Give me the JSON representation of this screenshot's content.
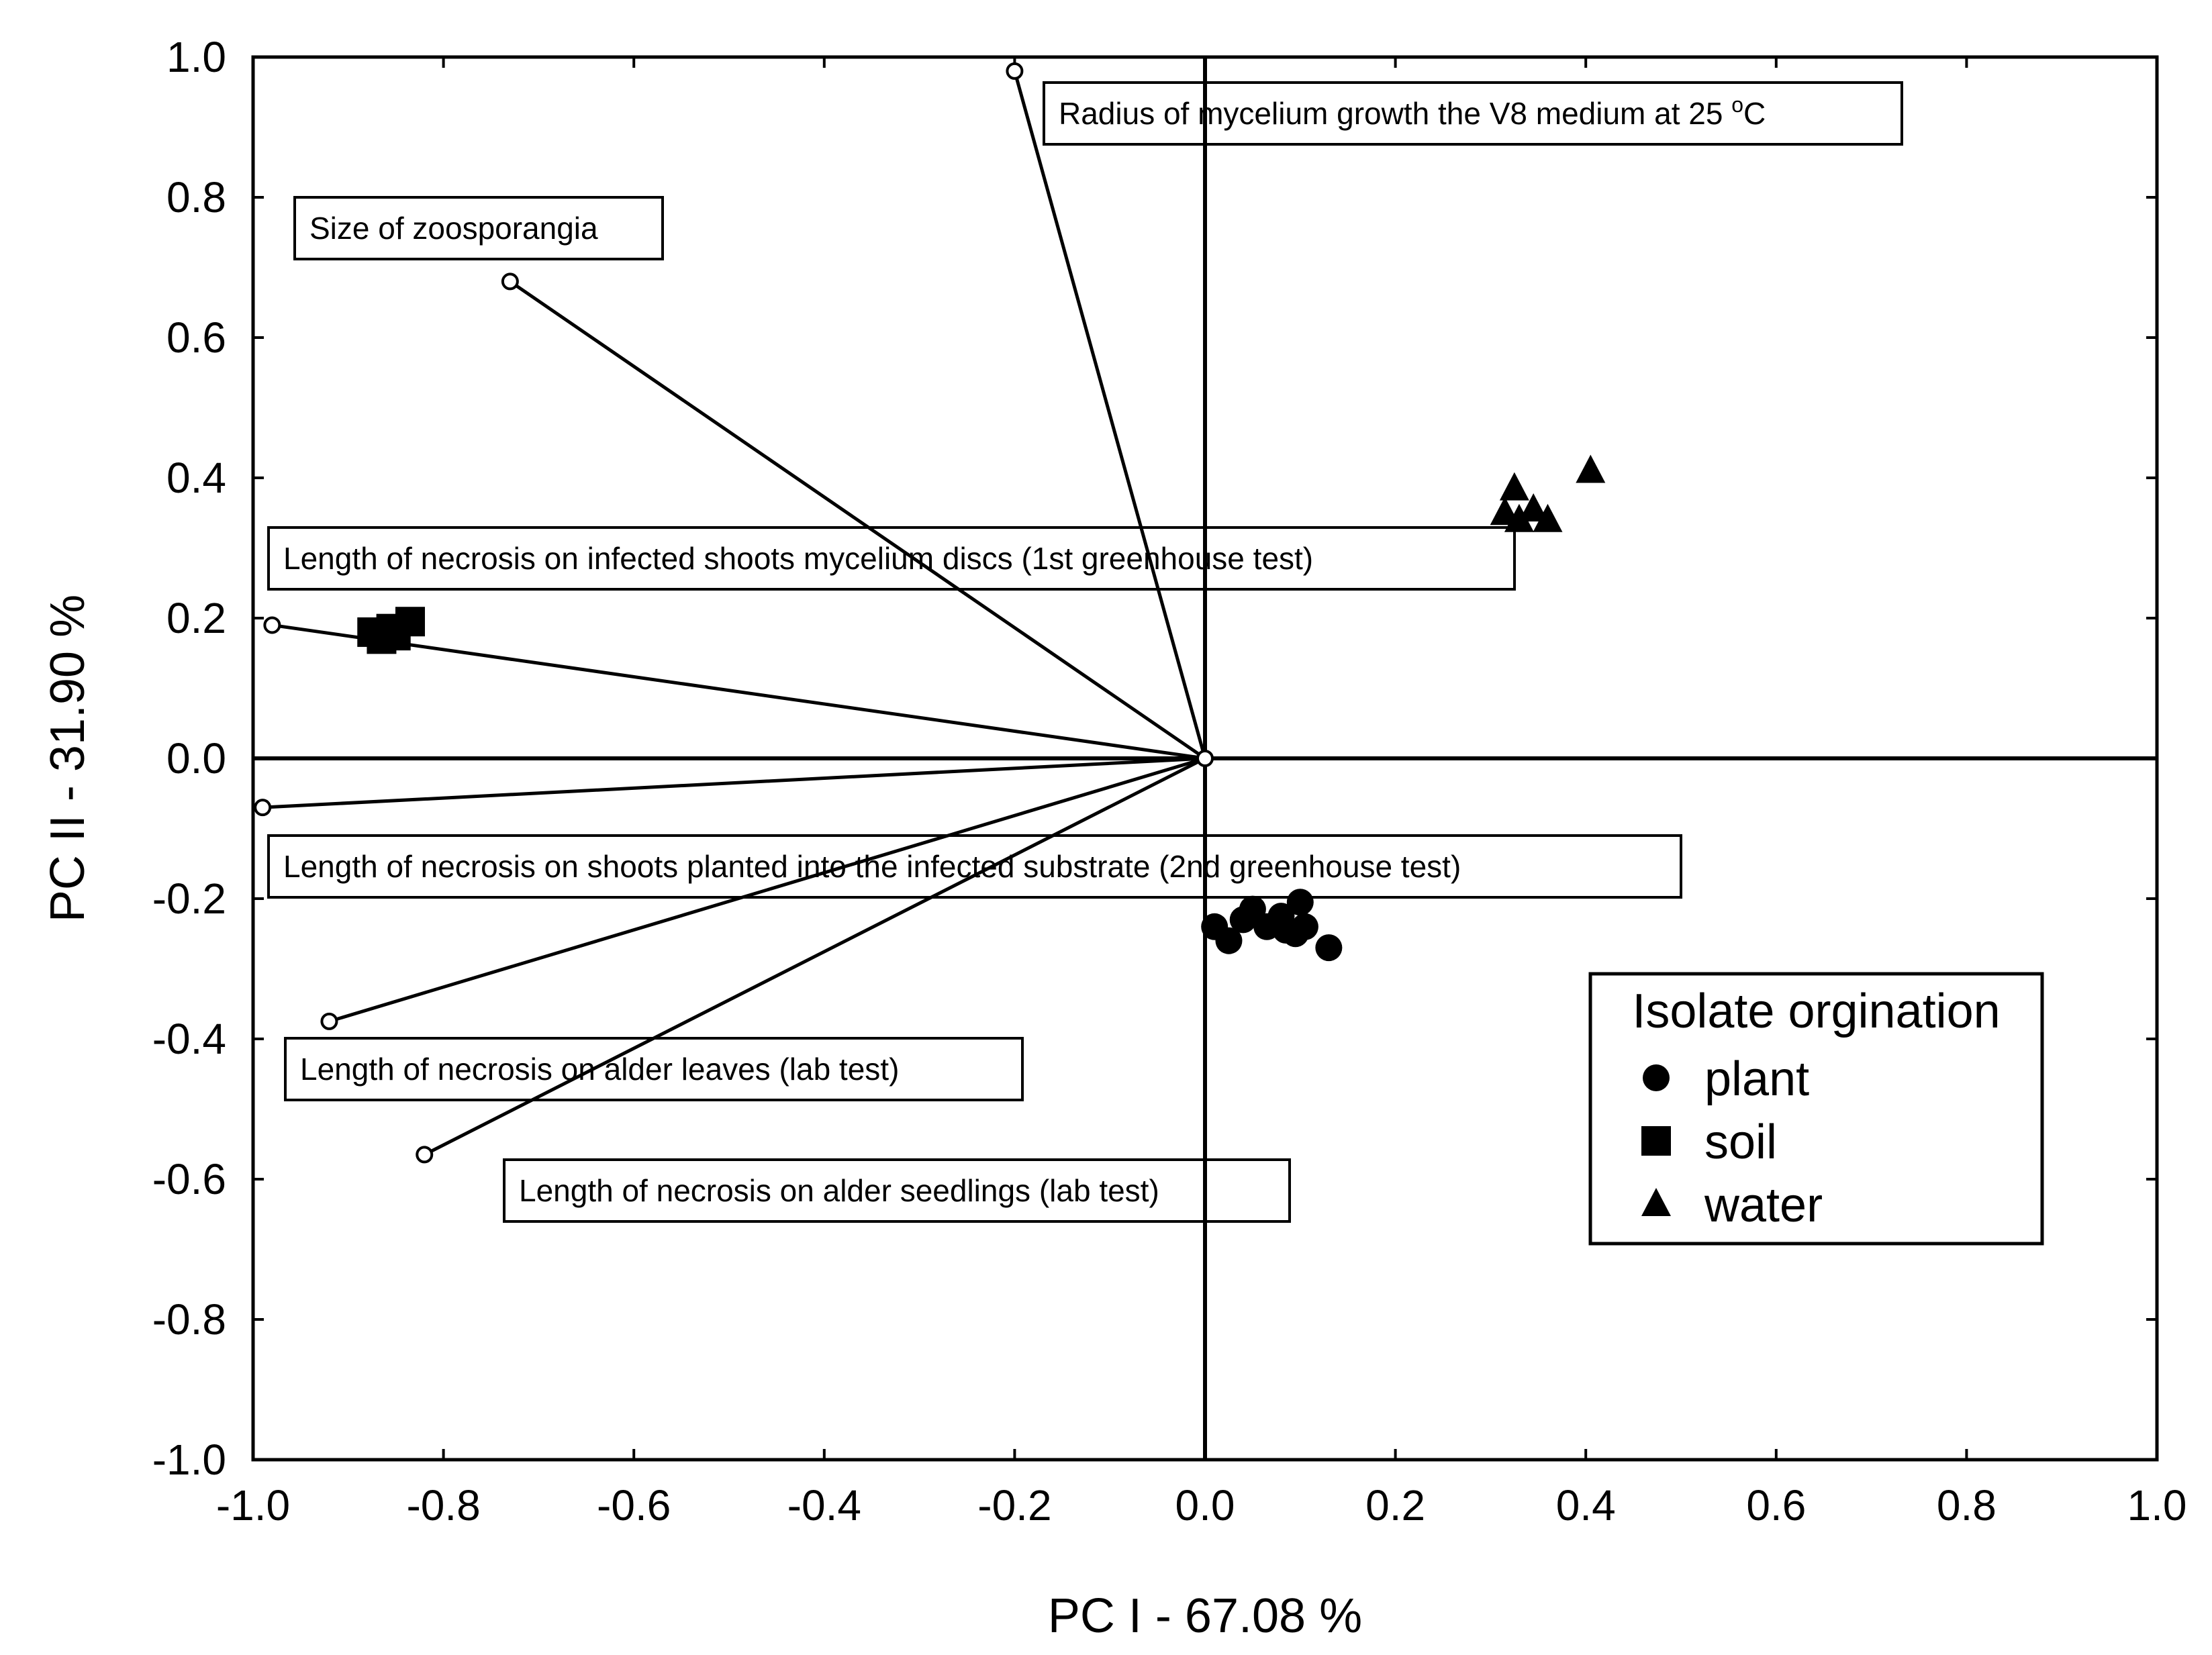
{
  "chart_data": {
    "type": "scatter",
    "title": "",
    "xlabel": "PC I - 67.08 %",
    "ylabel": "PC II - 31.90 %",
    "xlim": [
      -1.0,
      1.0
    ],
    "ylim": [
      -1.0,
      1.0
    ],
    "xticks": [
      "-1.0",
      "-0.8",
      "-0.6",
      "-0.4",
      "-0.2",
      "0.0",
      "0.2",
      "0.4",
      "0.6",
      "0.8",
      "1.0"
    ],
    "yticks": [
      "1.0",
      "0.8",
      "0.6",
      "0.4",
      "0.2",
      "0.0",
      "-0.2",
      "-0.4",
      "-0.6",
      "-0.8",
      "-1.0"
    ],
    "grid": false,
    "legend_title": "Isolate orgination",
    "legend_position": "lower-right",
    "vectors": [
      {
        "label": "Radius of mycelium growth the V8 medium at 25",
        "sup": "o",
        "unit": "C",
        "x": -0.2,
        "y": 0.98
      },
      {
        "label": "Size of zoosporangia",
        "x": -0.73,
        "y": 0.68
      },
      {
        "label": "Length of necrosis on infected shoots mycelium discs (1st greenhouse test)",
        "x": -0.98,
        "y": 0.19
      },
      {
        "label": "Length of necrosis on shoots planted into the infected substrate (2nd greenhouse test)",
        "x": -0.99,
        "y": -0.07
      },
      {
        "label": "Length of necrosis on alder leaves (lab test)",
        "x": -0.92,
        "y": -0.375
      },
      {
        "label": "Length of necrosis on alder seedlings (lab test)",
        "x": -0.82,
        "y": -0.565
      }
    ],
    "series": [
      {
        "name": "plant",
        "marker": "circle",
        "points": [
          [
            0.01,
            -0.24
          ],
          [
            0.025,
            -0.26
          ],
          [
            0.04,
            -0.23
          ],
          [
            0.05,
            -0.215
          ],
          [
            0.065,
            -0.24
          ],
          [
            0.08,
            -0.225
          ],
          [
            0.085,
            -0.245
          ],
          [
            0.095,
            -0.25
          ],
          [
            0.1,
            -0.205
          ],
          [
            0.105,
            -0.24
          ],
          [
            0.13,
            -0.27
          ]
        ]
      },
      {
        "name": "soil",
        "marker": "square",
        "points": [
          [
            -0.875,
            0.18
          ],
          [
            -0.865,
            0.17
          ],
          [
            -0.855,
            0.185
          ],
          [
            -0.85,
            0.175
          ],
          [
            -0.835,
            0.195
          ]
        ]
      },
      {
        "name": "water",
        "marker": "triangle",
        "points": [
          [
            0.315,
            0.35
          ],
          [
            0.325,
            0.385
          ],
          [
            0.33,
            0.34
          ],
          [
            0.345,
            0.355
          ],
          [
            0.36,
            0.34
          ],
          [
            0.405,
            0.41
          ]
        ]
      }
    ]
  }
}
